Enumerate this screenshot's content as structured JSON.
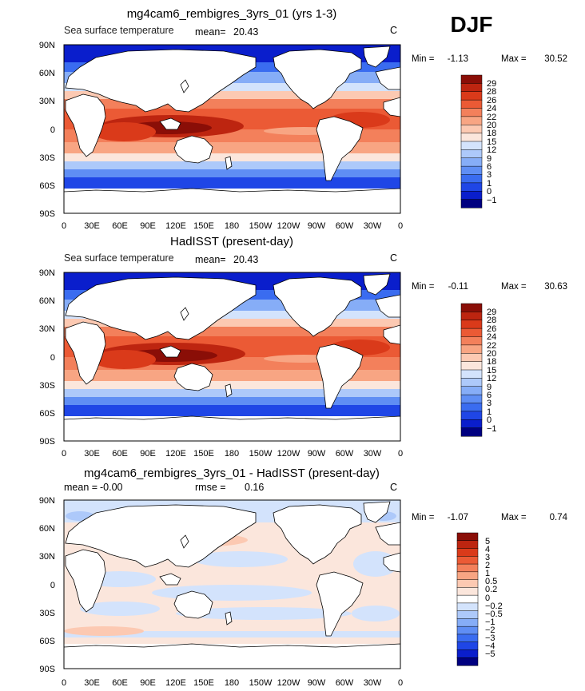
{
  "season": "DJF",
  "x_tick_labels": [
    "0",
    "30E",
    "60E",
    "90E",
    "120E",
    "150E",
    "180",
    "150W",
    "120W",
    "90W",
    "60W",
    "30W",
    "0"
  ],
  "y_tick_labels": [
    "90N",
    "60N",
    "30N",
    "0",
    "30S",
    "60S",
    "90S"
  ],
  "colors": {
    "land": "#ffffff",
    "coast": "#000000",
    "sst_scale": [
      "#000080",
      "#0a1ecc",
      "#1f46e6",
      "#3a6cf0",
      "#5f8ef4",
      "#86adf7",
      "#adc9fa",
      "#d3e3fc",
      "#fbe6dc",
      "#fcc9b2",
      "#f8a583",
      "#f3805b",
      "#eb5a35",
      "#da3a1a",
      "#bd2510",
      "#8a0e07"
    ],
    "diff_scale": [
      "#000080",
      "#0a1ecc",
      "#1f46e6",
      "#3a6cf0",
      "#5f8ef4",
      "#86adf7",
      "#adc9fa",
      "#d3e3fc",
      "#ffffff",
      "#fbe6dc",
      "#fcc9b2",
      "#f8a583",
      "#f3805b",
      "#eb5a35",
      "#da3a1a",
      "#bd2510",
      "#8a0e07"
    ]
  },
  "panels": [
    {
      "title": "mg4cam6_rembigres_3yrs_01 (yrs 1-3)",
      "left_label": "Sea surface temperature",
      "mean_label": "mean=",
      "mean_value": "20.43",
      "units": "C",
      "min_label": "Min =",
      "min_value": "-1.13",
      "max_label": "Max =",
      "max_value": "30.52",
      "colorbar_labels": [
        "29",
        "28",
        "26",
        "24",
        "22",
        "20",
        "18",
        "15",
        "12",
        "9",
        "6",
        "3",
        "1",
        "0",
        "−1"
      ]
    },
    {
      "title": "HadISST (present-day)",
      "left_label": "Sea surface temperature",
      "mean_label": "mean=",
      "mean_value": "20.43",
      "units": "C",
      "min_label": "Min =",
      "min_value": "-0.11",
      "max_label": "Max =",
      "max_value": "30.63",
      "colorbar_labels": [
        "29",
        "28",
        "26",
        "24",
        "22",
        "20",
        "18",
        "15",
        "12",
        "9",
        "6",
        "3",
        "1",
        "0",
        "−1"
      ]
    },
    {
      "title": "mg4cam6_rembigres_3yrs_01 - HadISST (present-day)",
      "mean_label": "mean =",
      "mean_value": "-0.00",
      "rmse_label": "rmse =",
      "rmse_value": "0.16",
      "units": "C",
      "min_label": "Min =",
      "min_value": "-1.07",
      "max_label": "Max =",
      "max_value": "0.74",
      "colorbar_labels": [
        "5",
        "4",
        "3",
        "2",
        "1",
        "0.5",
        "0.2",
        "0",
        "−0.2",
        "−0.5",
        "−1",
        "−2",
        "−3",
        "−4",
        "−5"
      ]
    }
  ],
  "chart_data": [
    {
      "type": "heatmap",
      "title": "mg4cam6_rembigres_3yrs_01 (yrs 1-3)",
      "variable": "Sea surface temperature",
      "units": "C",
      "mean": 20.43,
      "min": -1.13,
      "max": 30.52,
      "x_range": [
        0,
        360
      ],
      "y_range": [
        -90,
        90
      ],
      "contour_levels": [
        -1,
        0,
        1,
        3,
        6,
        9,
        12,
        15,
        18,
        20,
        22,
        24,
        26,
        28,
        29
      ]
    },
    {
      "type": "heatmap",
      "title": "HadISST (present-day)",
      "variable": "Sea surface temperature",
      "units": "C",
      "mean": 20.43,
      "min": -0.11,
      "max": 30.63,
      "x_range": [
        0,
        360
      ],
      "y_range": [
        -90,
        90
      ],
      "contour_levels": [
        -1,
        0,
        1,
        3,
        6,
        9,
        12,
        15,
        18,
        20,
        22,
        24,
        26,
        28,
        29
      ]
    },
    {
      "type": "heatmap",
      "title": "mg4cam6_rembigres_3yrs_01 - HadISST (present-day)",
      "units": "C",
      "mean": -0.0,
      "rmse": 0.16,
      "min": -1.07,
      "max": 0.74,
      "x_range": [
        0,
        360
      ],
      "y_range": [
        -90,
        90
      ],
      "contour_levels": [
        -5,
        -4,
        -3,
        -2,
        -1,
        -0.5,
        -0.2,
        0,
        0.2,
        0.5,
        1,
        2,
        3,
        4,
        5
      ]
    }
  ]
}
